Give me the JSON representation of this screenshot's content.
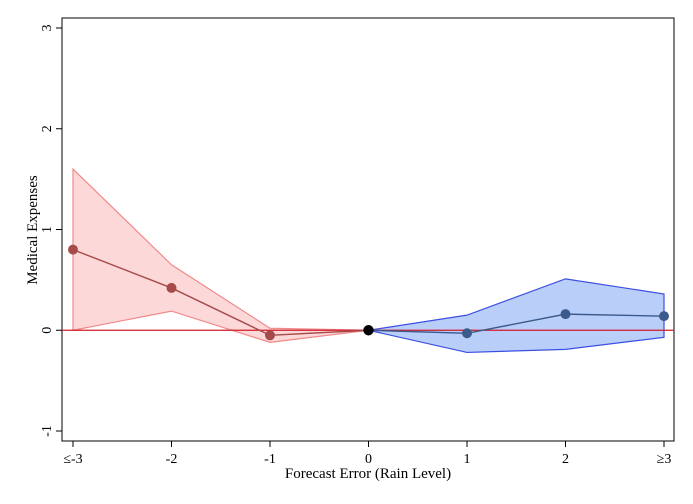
{
  "chart_data": {
    "type": "line",
    "xlabel": "Forecast Error (Rain Level)",
    "ylabel": "Medical Expenses",
    "xlim": [
      -3,
      3
    ],
    "ylim": [
      -1,
      3
    ],
    "x_ticks": [
      {
        "value": -3,
        "label": "≤-3"
      },
      {
        "value": -2,
        "label": "-2"
      },
      {
        "value": -1,
        "label": "-1"
      },
      {
        "value": 0,
        "label": "0"
      },
      {
        "value": 1,
        "label": "1"
      },
      {
        "value": 2,
        "label": "2"
      },
      {
        "value": 3,
        "label": "≥3"
      }
    ],
    "y_ticks": [
      {
        "value": -1,
        "label": "-1"
      },
      {
        "value": 0,
        "label": "0"
      },
      {
        "value": 1,
        "label": "1"
      },
      {
        "value": 2,
        "label": "2"
      },
      {
        "value": 3,
        "label": "3"
      }
    ],
    "reference_line": {
      "y": 0,
      "color": "#d01c2a"
    },
    "series": [
      {
        "color": "#a64a4a",
        "band_fill": "#fdd8d8",
        "band_stroke": "#f08a8a",
        "x": [
          -3,
          -2,
          -1,
          0
        ],
        "y": [
          0.8,
          0.42,
          -0.05,
          0
        ],
        "lower": [
          0,
          0.19,
          -0.12,
          0
        ],
        "upper": [
          1.6,
          0.65,
          0.02,
          0
        ]
      },
      {
        "color": "#3c5a8c",
        "band_fill": "#b9cffa",
        "band_stroke": "#3b4fe0",
        "x": [
          0,
          1,
          2,
          3
        ],
        "y": [
          0,
          -0.03,
          0.16,
          0.14
        ],
        "lower": [
          0,
          -0.22,
          -0.19,
          -0.07
        ],
        "upper": [
          0,
          0.15,
          0.51,
          0.36
        ]
      }
    ],
    "zero_point": {
      "x": 0,
      "y": 0,
      "color": "#000000"
    },
    "grid": false
  }
}
